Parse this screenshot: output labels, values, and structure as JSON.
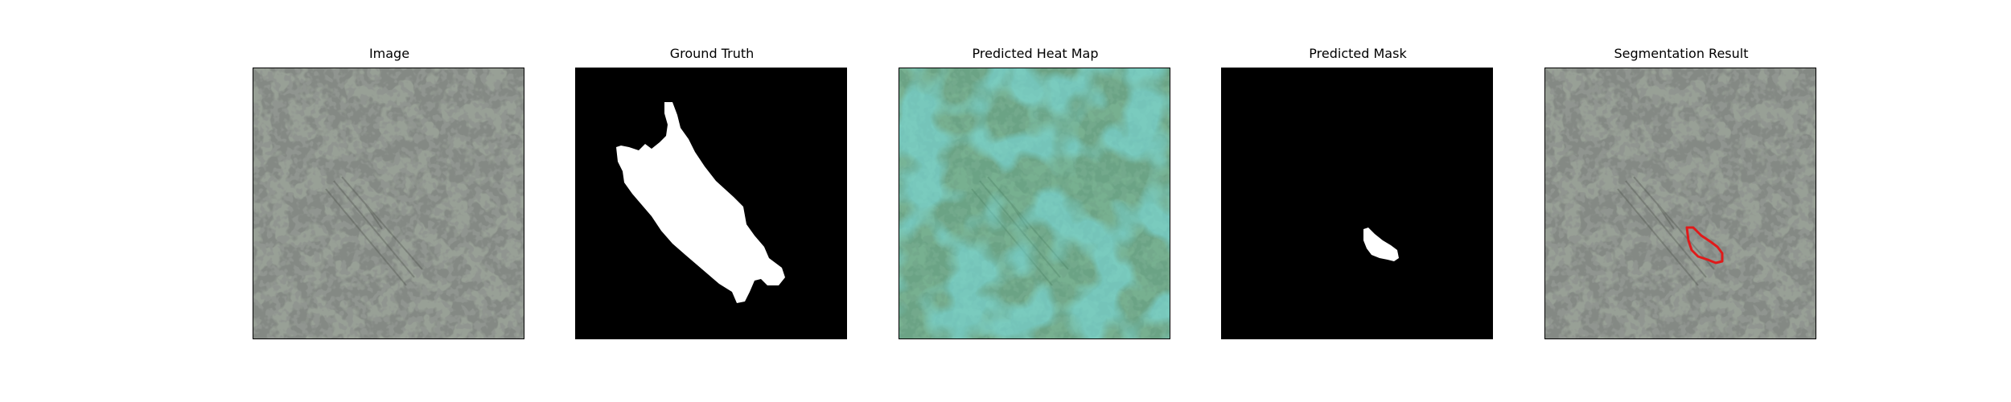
{
  "figure": {
    "panels": [
      {
        "title": "Image"
      },
      {
        "title": "Ground Truth"
      },
      {
        "title": "Predicted Heat Map"
      },
      {
        "title": "Predicted Mask"
      },
      {
        "title": "Segmentation Result"
      }
    ]
  },
  "colors": {
    "terrain_base": "#98a096",
    "terrain_dark": "#3c403b",
    "mask_background": "#000000",
    "mask_foreground": "#ffffff",
    "heatmap_overlay": "#3fc48b",
    "heatmap_cool": "#33c4d8",
    "contour": "#e01a1a"
  }
}
